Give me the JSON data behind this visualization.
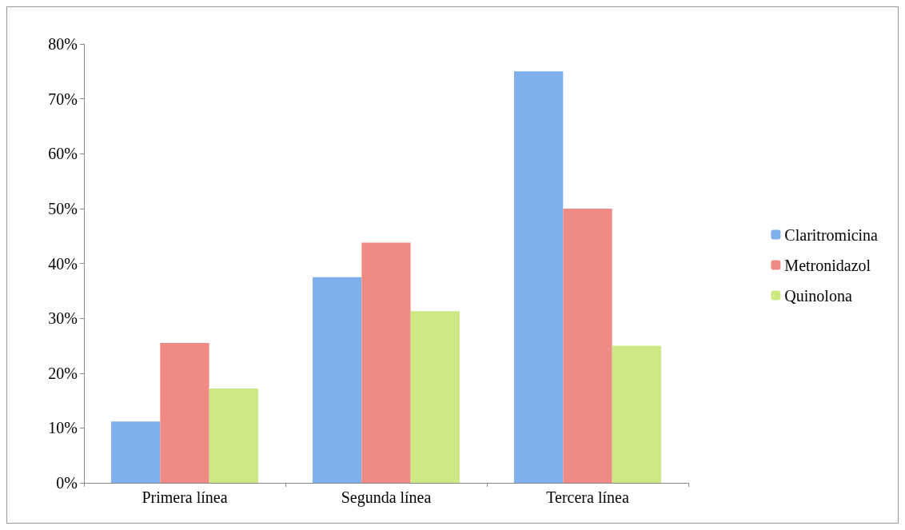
{
  "chart_data": {
    "type": "bar",
    "categories": [
      "Primera línea",
      "Segunda línea",
      "Tercera línea"
    ],
    "series": [
      {
        "name": "Claritromicina",
        "color": "#7fb0ec",
        "values": [
          11.2,
          37.5,
          75
        ]
      },
      {
        "name": "Metronidazol",
        "color": "#f08a85",
        "values": [
          25.5,
          43.8,
          50
        ]
      },
      {
        "name": "Quinolona",
        "color": "#cde985",
        "values": [
          17.2,
          31.3,
          25
        ]
      }
    ],
    "ylim": [
      0,
      80
    ],
    "yticks": [
      {
        "value": 0,
        "label": "0%"
      },
      {
        "value": 10,
        "label": "10%"
      },
      {
        "value": 20,
        "label": "20%"
      },
      {
        "value": 30,
        "label": "30%"
      },
      {
        "value": 40,
        "label": "40%"
      },
      {
        "value": 50,
        "label": "50%"
      },
      {
        "value": 60,
        "label": "60%"
      },
      {
        "value": 70,
        "label": "70%"
      },
      {
        "value": 80,
        "label": "80%"
      }
    ],
    "grid": false,
    "legend": "right"
  }
}
